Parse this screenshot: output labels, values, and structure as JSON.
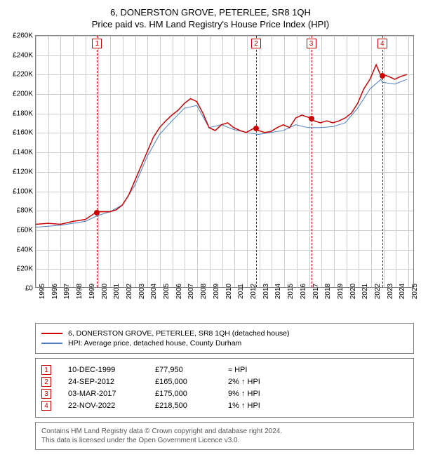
{
  "title1": "6, DONERSTON GROVE, PETERLEE, SR8 1QH",
  "title2": "Price paid vs. HM Land Registry's House Price Index (HPI)",
  "chart": {
    "type": "line",
    "ylim": [
      0,
      260000
    ],
    "ytick_step": 20000,
    "yticks": [
      "£0",
      "£20K",
      "£40K",
      "£60K",
      "£80K",
      "£100K",
      "£120K",
      "£140K",
      "£160K",
      "£180K",
      "£200K",
      "£220K",
      "£240K",
      "£260K"
    ],
    "xlim": [
      1995,
      2025.5
    ],
    "xticks": [
      1995,
      1996,
      1997,
      1998,
      1999,
      2000,
      2001,
      2002,
      2003,
      2004,
      2005,
      2006,
      2007,
      2008,
      2009,
      2010,
      2011,
      2012,
      2013,
      2014,
      2015,
      2016,
      2017,
      2018,
      2019,
      2020,
      2021,
      2022,
      2023,
      2024,
      2025
    ],
    "background": "#ffffff",
    "grid_color": "#cccccc",
    "series": [
      {
        "name": "property",
        "color": "#cc0000",
        "width": 1.5,
        "points": [
          [
            1995,
            65000
          ],
          [
            1996,
            66000
          ],
          [
            1997,
            65000
          ],
          [
            1998,
            68000
          ],
          [
            1999,
            70000
          ],
          [
            1999.94,
            77950
          ],
          [
            2000.5,
            78000
          ],
          [
            2001,
            78000
          ],
          [
            2001.5,
            80000
          ],
          [
            2002,
            85000
          ],
          [
            2002.5,
            95000
          ],
          [
            2003,
            110000
          ],
          [
            2003.5,
            125000
          ],
          [
            2004,
            140000
          ],
          [
            2004.5,
            155000
          ],
          [
            2005,
            165000
          ],
          [
            2005.5,
            172000
          ],
          [
            2006,
            178000
          ],
          [
            2006.5,
            183000
          ],
          [
            2007,
            190000
          ],
          [
            2007.5,
            195000
          ],
          [
            2008,
            192000
          ],
          [
            2008.5,
            180000
          ],
          [
            2009,
            165000
          ],
          [
            2009.5,
            162000
          ],
          [
            2010,
            168000
          ],
          [
            2010.5,
            170000
          ],
          [
            2011,
            165000
          ],
          [
            2011.5,
            162000
          ],
          [
            2012,
            160000
          ],
          [
            2012.73,
            165000
          ],
          [
            2013,
            162000
          ],
          [
            2013.5,
            160000
          ],
          [
            2014,
            161000
          ],
          [
            2014.5,
            165000
          ],
          [
            2015,
            168000
          ],
          [
            2015.5,
            165000
          ],
          [
            2016,
            175000
          ],
          [
            2016.5,
            178000
          ],
          [
            2017.17,
            175000
          ],
          [
            2017.5,
            172000
          ],
          [
            2018,
            170000
          ],
          [
            2018.5,
            172000
          ],
          [
            2019,
            170000
          ],
          [
            2019.5,
            172000
          ],
          [
            2020,
            175000
          ],
          [
            2020.5,
            180000
          ],
          [
            2021,
            190000
          ],
          [
            2021.5,
            205000
          ],
          [
            2022,
            215000
          ],
          [
            2022.5,
            230000
          ],
          [
            2022.89,
            218500
          ],
          [
            2023,
            220000
          ],
          [
            2023.5,
            218000
          ],
          [
            2024,
            215000
          ],
          [
            2024.5,
            218000
          ],
          [
            2025,
            220000
          ]
        ]
      },
      {
        "name": "hpi",
        "color": "#4a7ec8",
        "width": 1,
        "points": [
          [
            1995,
            62000
          ],
          [
            1996,
            63000
          ],
          [
            1997,
            64000
          ],
          [
            1998,
            66000
          ],
          [
            1999,
            68000
          ],
          [
            2000,
            74000
          ],
          [
            2001,
            78000
          ],
          [
            2002,
            85000
          ],
          [
            2003,
            105000
          ],
          [
            2004,
            135000
          ],
          [
            2005,
            158000
          ],
          [
            2006,
            172000
          ],
          [
            2007,
            185000
          ],
          [
            2008,
            188000
          ],
          [
            2009,
            165000
          ],
          [
            2010,
            168000
          ],
          [
            2011,
            163000
          ],
          [
            2012,
            160000
          ],
          [
            2013,
            158000
          ],
          [
            2014,
            160000
          ],
          [
            2015,
            162000
          ],
          [
            2016,
            168000
          ],
          [
            2017,
            165000
          ],
          [
            2018,
            165000
          ],
          [
            2019,
            166000
          ],
          [
            2020,
            170000
          ],
          [
            2021,
            185000
          ],
          [
            2022,
            205000
          ],
          [
            2022.89,
            215000
          ],
          [
            2023,
            212000
          ],
          [
            2024,
            210000
          ],
          [
            2025,
            215000
          ]
        ]
      }
    ],
    "sale_markers": [
      {
        "n": "1",
        "year": 1999.94,
        "value": 77950
      },
      {
        "n": "2",
        "year": 2012.73,
        "value": 165000
      },
      {
        "n": "3",
        "year": 2017.17,
        "value": 175000
      },
      {
        "n": "4",
        "year": 2022.89,
        "value": 218500
      }
    ],
    "marker_dot_color": "#cc0000"
  },
  "legend": {
    "items": [
      {
        "color": "#cc0000",
        "label": "6, DONERSTON GROVE, PETERLEE, SR8 1QH (detached house)"
      },
      {
        "color": "#4a7ec8",
        "label": "HPI: Average price, detached house, County Durham"
      }
    ]
  },
  "sales": [
    {
      "n": "1",
      "date": "10-DEC-1999",
      "price": "£77,950",
      "rel": "≈ HPI"
    },
    {
      "n": "2",
      "date": "24-SEP-2012",
      "price": "£165,000",
      "rel": "2% ↑ HPI"
    },
    {
      "n": "3",
      "date": "03-MAR-2017",
      "price": "£175,000",
      "rel": "9% ↑ HPI"
    },
    {
      "n": "4",
      "date": "22-NOV-2022",
      "price": "£218,500",
      "rel": "1% ↑ HPI"
    }
  ],
  "footer": {
    "line1": "Contains HM Land Registry data © Crown copyright and database right 2024.",
    "line2": "This data is licensed under the Open Government Licence v3.0."
  }
}
